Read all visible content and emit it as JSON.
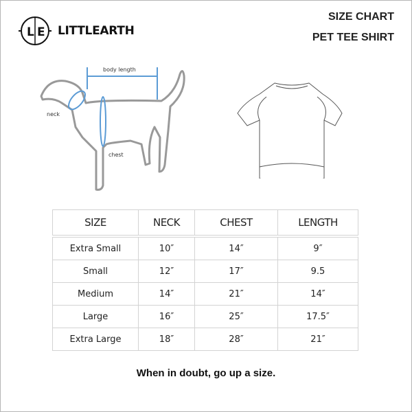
{
  "brand": {
    "logo_letters": "L|E",
    "name": "LITTLEARTH"
  },
  "header": {
    "title": "SIZE CHART",
    "subtitle": "PET TEE SHIRT"
  },
  "diagram": {
    "body_length_label": "body length",
    "neck_label": "neck",
    "chest_label": "chest",
    "measure_color": "#5b9bd5"
  },
  "table": {
    "headers": [
      "SIZE",
      "NECK",
      "CHEST",
      "LENGTH"
    ],
    "rows": [
      [
        "Extra Small",
        "10″",
        "14″",
        "9″"
      ],
      [
        "Small",
        "12″",
        "17″",
        "9.5"
      ],
      [
        "Medium",
        "14″",
        "21″",
        "14″"
      ],
      [
        "Large",
        "16″",
        "25″",
        "17.5″"
      ],
      [
        "Extra Large",
        "18″",
        "28″",
        "21″"
      ]
    ]
  },
  "footer": {
    "note": "When in doubt, go up a size."
  }
}
